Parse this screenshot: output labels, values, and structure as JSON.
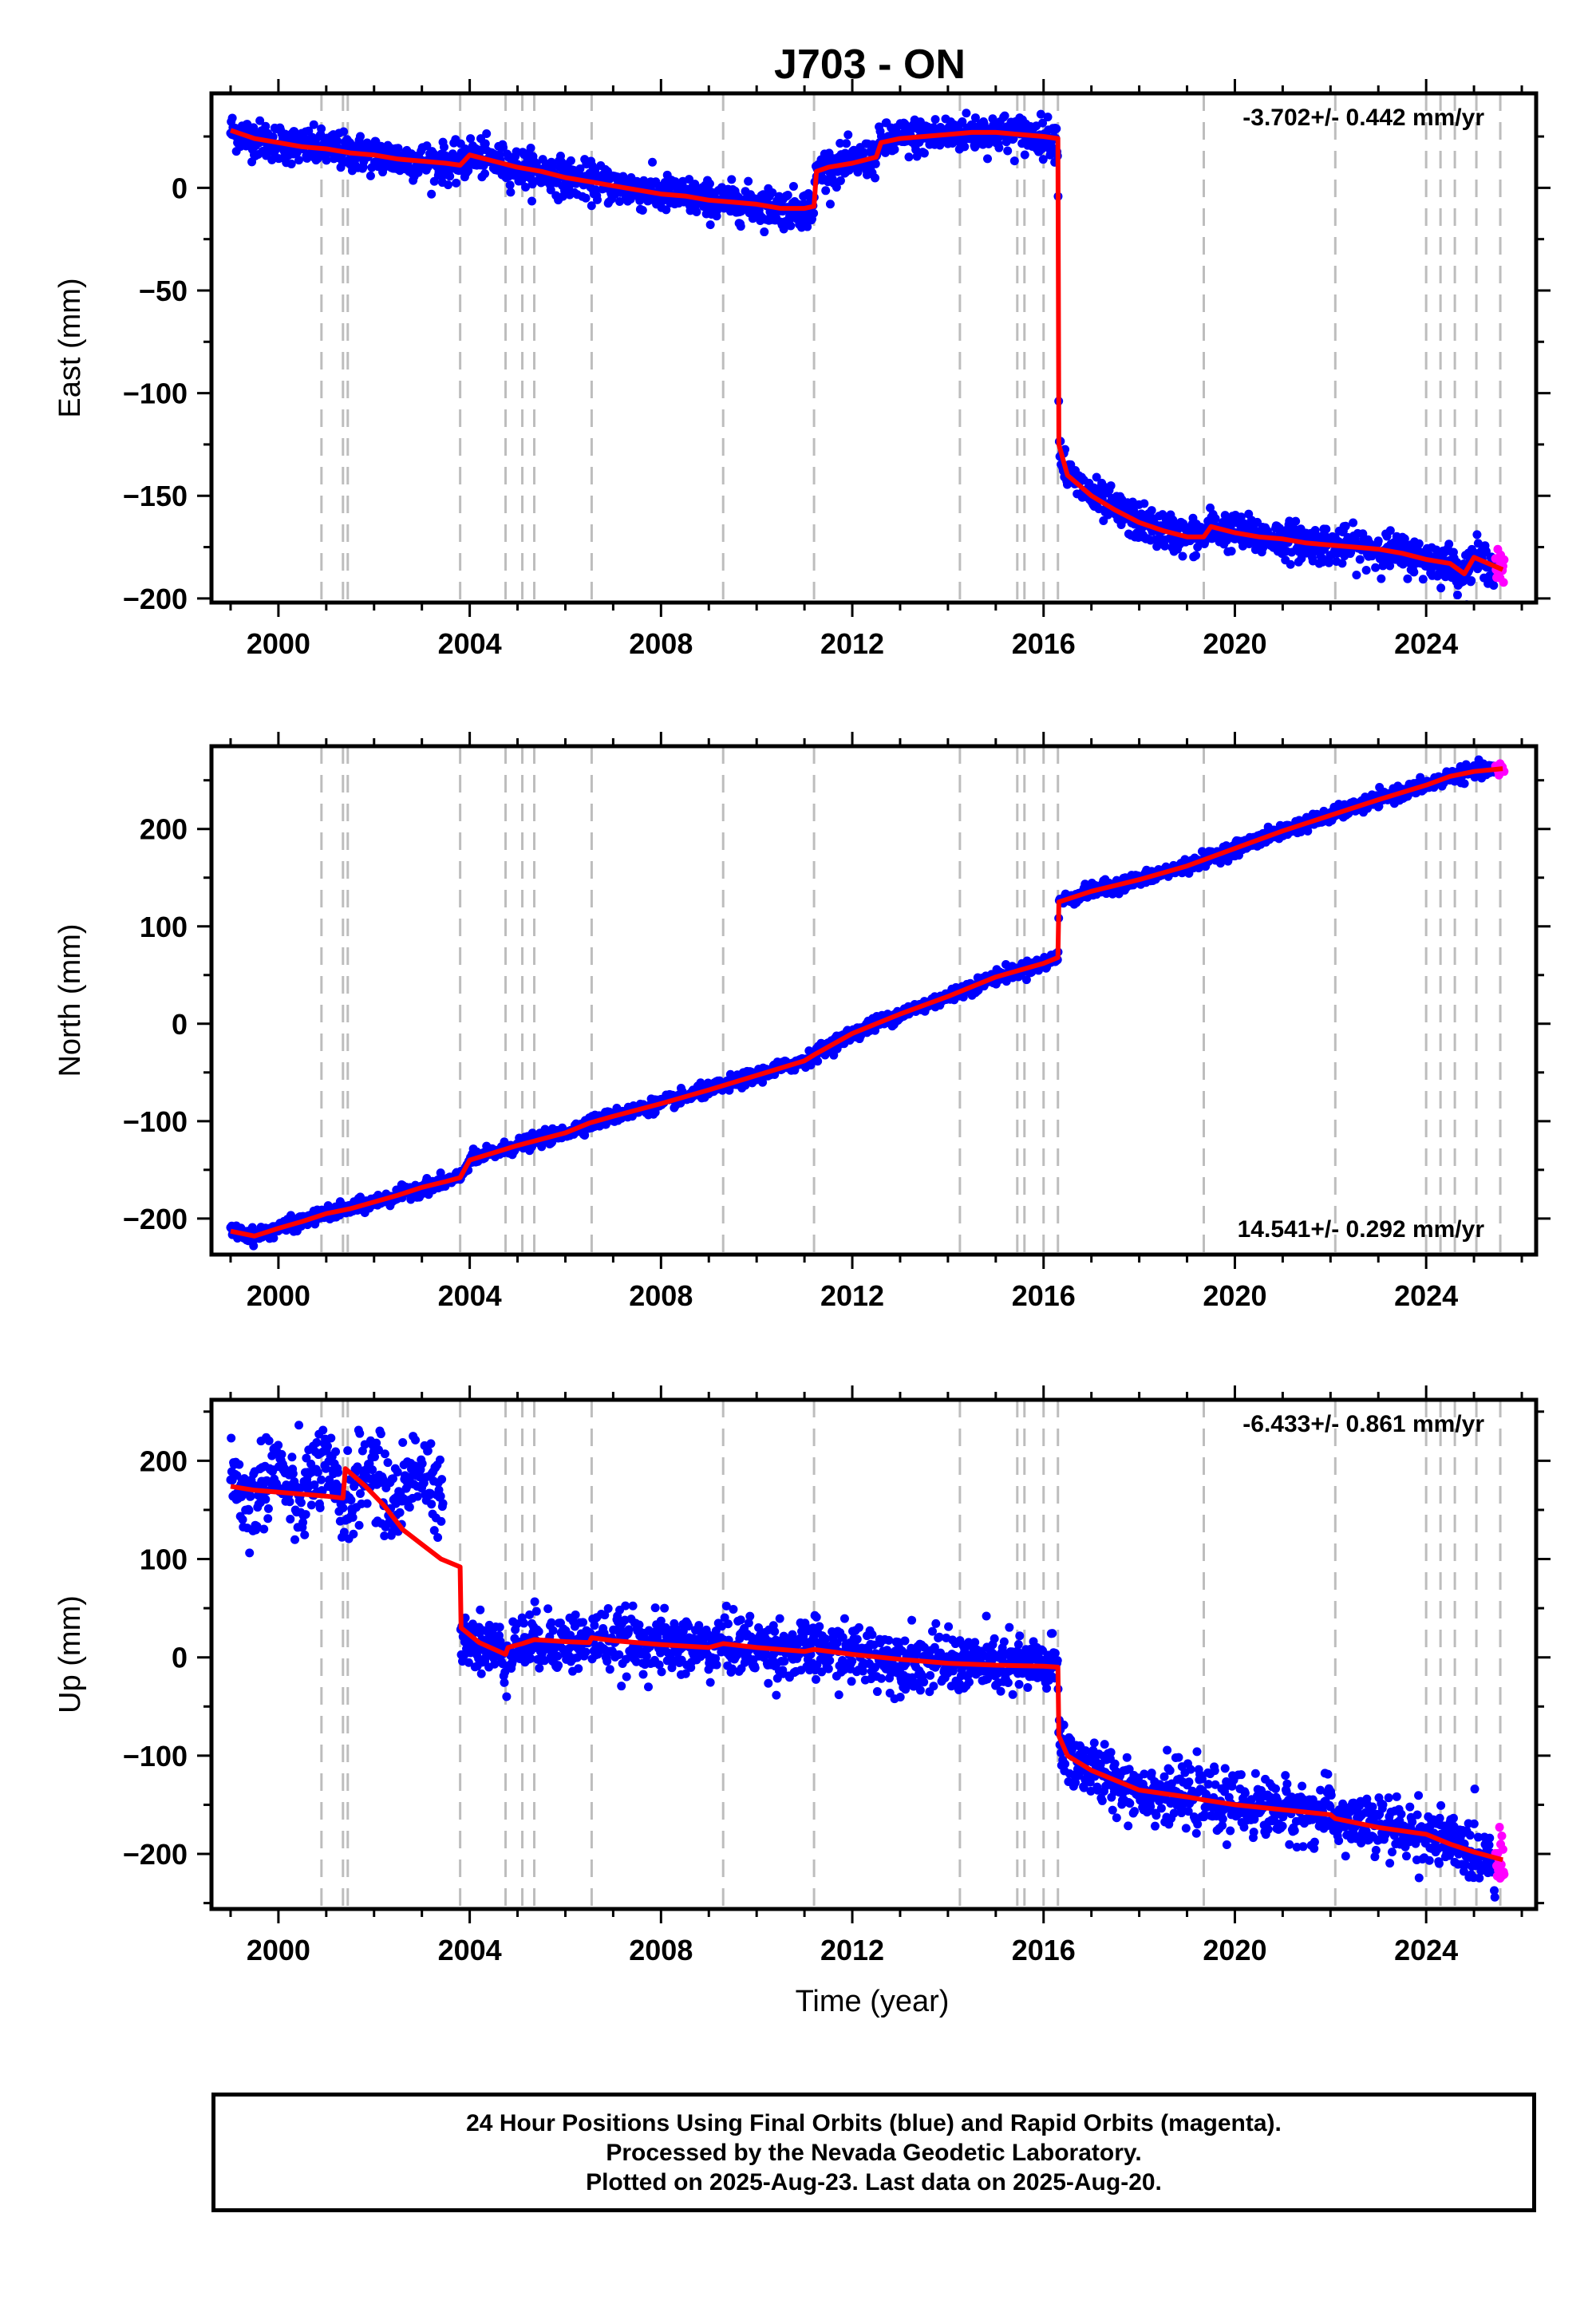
{
  "title": "J703 - ON",
  "xlabel": "Time (year)",
  "footer": {
    "line1": "24 Hour Positions Using Final Orbits (blue) and Rapid Orbits (magenta).",
    "line2": "Processed by the Nevada Geodetic Laboratory.",
    "line3": "Plotted on 2025-Aug-23. Last data on 2025-Aug-20."
  },
  "colors": {
    "final": "#0000ff",
    "rapid": "#ff00ff",
    "model": "#ff0000",
    "event_lines": "#bdbdbd"
  },
  "chart_data": [
    {
      "type": "scatter",
      "panel": "East",
      "ylabel": "East (mm)",
      "rate_label": "-3.702+/- 0.442 mm/yr",
      "rate_label_position": "top-right",
      "xlim": [
        1998.6,
        2026.3
      ],
      "ylim": [
        -202,
        46
      ],
      "xticks": [
        2000,
        2004,
        2008,
        2012,
        2016,
        2020,
        2024
      ],
      "yticks": [
        0,
        -50,
        -100,
        -150,
        -200
      ],
      "event_lines": [
        2000.9,
        2001.35,
        2001.45,
        2003.8,
        2004.75,
        2005.1,
        2005.35,
        2006.55,
        2009.3,
        2011.2,
        2014.25,
        2015.45,
        2015.6,
        2016.0,
        2016.3,
        2019.35,
        2022.1,
        2024.0,
        2024.3,
        2024.6,
        2025.05,
        2025.55
      ],
      "model_line": {
        "name": "model",
        "x": [
          1999.0,
          1999.5,
          2000.0,
          2000.5,
          2001.0,
          2001.5,
          2002.0,
          2002.5,
          2003.0,
          2003.5,
          2003.8,
          2004.0,
          2004.5,
          2005.0,
          2005.5,
          2006.0,
          2006.5,
          2007.0,
          2007.5,
          2008.0,
          2008.5,
          2009.0,
          2009.5,
          2010.0,
          2010.5,
          2011.0,
          2011.2,
          2011.25,
          2011.5,
          2012.0,
          2012.5,
          2012.6,
          2013.0,
          2013.5,
          2014.0,
          2014.5,
          2015.0,
          2015.5,
          2016.0,
          2016.3,
          2016.32,
          2016.5,
          2017.0,
          2017.5,
          2018.0,
          2018.5,
          2019.0,
          2019.35,
          2019.5,
          2020.0,
          2020.5,
          2021.0,
          2021.5,
          2022.0,
          2022.5,
          2023.0,
          2023.5,
          2024.0,
          2024.5,
          2024.8,
          2025.0,
          2025.6
        ],
        "y": [
          28,
          24,
          22,
          20,
          19,
          17,
          16,
          14,
          13,
          12,
          11,
          16,
          13,
          10,
          8,
          5,
          3,
          1,
          -1,
          -3,
          -4,
          -6,
          -7,
          -8,
          -10,
          -10,
          -9,
          8,
          10,
          12,
          15,
          22,
          24,
          25,
          26,
          27,
          27,
          26,
          25,
          24,
          -125,
          -140,
          -150,
          -157,
          -163,
          -167,
          -170,
          -170,
          -165,
          -168,
          -170,
          -171,
          -173,
          -174,
          -175,
          -176,
          -178,
          -181,
          -183,
          -188,
          -180,
          -186
        ]
      },
      "series": [
        {
          "name": "Final Orbits",
          "color": "blue",
          "scatter_sigma_mm": 4.5
        },
        {
          "name": "Rapid Orbits",
          "color": "magenta",
          "x_range": [
            2025.45,
            2025.63
          ]
        }
      ]
    },
    {
      "type": "scatter",
      "panel": "North",
      "ylabel": "North (mm)",
      "rate_label": "14.541+/- 0.292 mm/yr",
      "rate_label_position": "bottom-right",
      "xlim": [
        1998.6,
        2026.3
      ],
      "ylim": [
        -237,
        285
      ],
      "xticks": [
        2000,
        2004,
        2008,
        2012,
        2016,
        2020,
        2024
      ],
      "yticks": [
        200,
        100,
        0,
        -100,
        -200
      ],
      "event_lines": [
        2000.9,
        2001.35,
        2001.45,
        2003.8,
        2004.75,
        2005.1,
        2005.35,
        2006.55,
        2009.3,
        2011.2,
        2014.25,
        2015.45,
        2015.6,
        2016.0,
        2016.3,
        2019.35,
        2022.1,
        2024.0,
        2024.3,
        2024.6,
        2025.05,
        2025.55
      ],
      "model_line": {
        "name": "model",
        "x": [
          1999.0,
          1999.5,
          2000.0,
          2000.5,
          2001.0,
          2001.5,
          2002.0,
          2002.5,
          2003.0,
          2003.5,
          2003.8,
          2004.0,
          2005.0,
          2006.0,
          2006.5,
          2007.0,
          2008.0,
          2009.0,
          2010.0,
          2011.0,
          2011.2,
          2012.0,
          2013.0,
          2014.0,
          2015.0,
          2016.0,
          2016.3,
          2016.32,
          2017.0,
          2018.0,
          2019.0,
          2020.0,
          2021.0,
          2022.0,
          2023.0,
          2024.0,
          2024.5,
          2025.0,
          2025.6
        ],
        "y": [
          -213,
          -218,
          -210,
          -203,
          -195,
          -190,
          -183,
          -176,
          -168,
          -162,
          -158,
          -140,
          -125,
          -112,
          -102,
          -95,
          -82,
          -68,
          -53,
          -38,
          -32,
          -10,
          10,
          28,
          48,
          62,
          68,
          125,
          136,
          148,
          162,
          180,
          198,
          214,
          230,
          245,
          254,
          259,
          262
        ]
      },
      "series": [
        {
          "name": "Final Orbits",
          "color": "blue",
          "scatter_sigma_mm": 3.5
        },
        {
          "name": "Rapid Orbits",
          "color": "magenta",
          "x_range": [
            2025.45,
            2025.63
          ]
        }
      ]
    },
    {
      "type": "scatter",
      "panel": "Up",
      "ylabel": "Up (mm)",
      "rate_label": "-6.433+/- 0.861 mm/yr",
      "rate_label_position": "top-right",
      "xlim": [
        1998.6,
        2026.3
      ],
      "ylim": [
        -256,
        262
      ],
      "xticks": [
        2000,
        2004,
        2008,
        2012,
        2016,
        2020,
        2024
      ],
      "yticks": [
        200,
        100,
        0,
        -100,
        -200
      ],
      "event_lines": [
        2000.9,
        2001.35,
        2001.45,
        2003.8,
        2004.75,
        2005.1,
        2005.35,
        2006.55,
        2009.3,
        2011.2,
        2014.25,
        2015.45,
        2015.6,
        2016.0,
        2016.3,
        2019.35,
        2022.1,
        2024.0,
        2024.3,
        2024.6,
        2025.05,
        2025.55
      ],
      "model_line": {
        "name": "model",
        "x": [
          1999.0,
          1999.5,
          2000.0,
          2000.5,
          2001.0,
          2001.35,
          2001.4,
          2001.8,
          2002.2,
          2002.6,
          2003.0,
          2003.4,
          2003.8,
          2003.82,
          2004.2,
          2004.75,
          2004.8,
          2005.1,
          2005.35,
          2006.0,
          2006.5,
          2006.55,
          2007.0,
          2008.0,
          2009.0,
          2009.3,
          2010.0,
          2011.0,
          2011.2,
          2012.0,
          2013.0,
          2014.0,
          2015.0,
          2016.0,
          2016.3,
          2016.32,
          2016.5,
          2017.0,
          2017.5,
          2018.0,
          2019.0,
          2019.35,
          2020.0,
          2021.0,
          2022.0,
          2022.1,
          2023.0,
          2024.0,
          2024.5,
          2025.0,
          2025.6
        ],
        "y": [
          174,
          170,
          168,
          166,
          164,
          162,
          192,
          175,
          155,
          130,
          115,
          100,
          92,
          30,
          15,
          3,
          10,
          14,
          18,
          16,
          15,
          20,
          17,
          13,
          10,
          14,
          10,
          6,
          8,
          3,
          -2,
          -6,
          -8,
          -9,
          -10,
          -80,
          -100,
          -115,
          -125,
          -135,
          -142,
          -145,
          -150,
          -155,
          -160,
          -164,
          -173,
          -180,
          -190,
          -198,
          -206
        ]
      },
      "series": [
        {
          "name": "Final Orbits",
          "color": "blue",
          "scatter_sigma_mm": 15
        },
        {
          "name": "Rapid Orbits",
          "color": "magenta",
          "x_range": [
            2025.45,
            2025.63
          ]
        }
      ]
    }
  ]
}
